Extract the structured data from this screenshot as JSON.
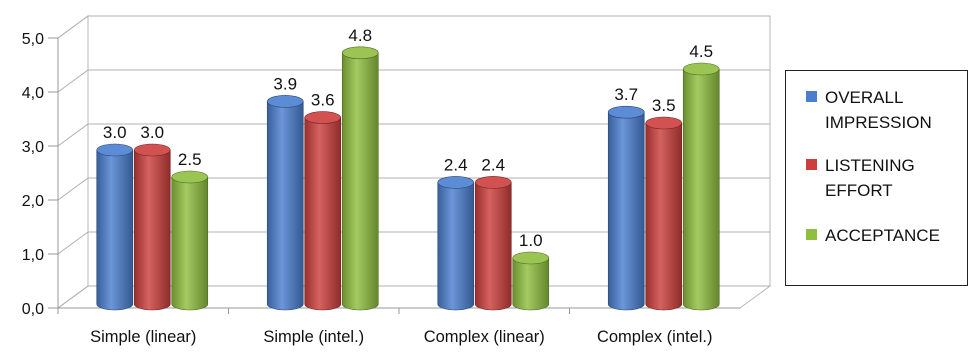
{
  "chart_data": {
    "type": "bar",
    "style": "3d-clustered-column",
    "categories": [
      "Simple (linear)",
      "Simple (intel.)",
      "Complex (linear)",
      "Complex (intel.)"
    ],
    "series": [
      {
        "name": "OVERALL IMPRESSION",
        "values": [
          3.0,
          3.9,
          2.4,
          3.7
        ],
        "color": "#4a7fd0"
      },
      {
        "name": "LISTENING EFFORT",
        "values": [
          3.0,
          3.6,
          2.4,
          3.5
        ],
        "color": "#cc3f3c"
      },
      {
        "name": "ACCEPTANCE",
        "values": [
          2.5,
          4.8,
          1.0,
          4.5
        ],
        "color": "#8fbf3f"
      }
    ],
    "data_labels": [
      [
        "3.0",
        "3.9",
        "2.4",
        "3.7"
      ],
      [
        "3.0",
        "3.6",
        "2.4",
        "3.5"
      ],
      [
        "2.5",
        "4.8",
        "1.0",
        "4.5"
      ]
    ],
    "y_ticks": [
      "0,0",
      "1,0",
      "2,0",
      "3,0",
      "4,0",
      "5,0"
    ],
    "ylim": [
      0,
      5
    ],
    "grid": true,
    "legend_position": "right",
    "title": "",
    "xlabel": "",
    "ylabel": ""
  }
}
